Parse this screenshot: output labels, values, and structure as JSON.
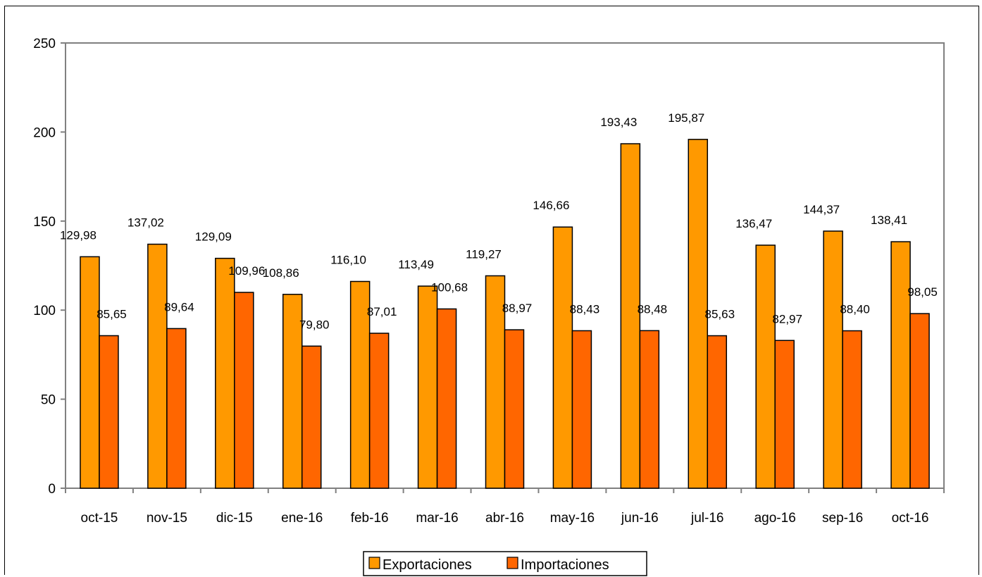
{
  "chart_data": {
    "type": "bar",
    "title": "",
    "xlabel": "",
    "ylabel": "",
    "ylim": [
      0,
      250
    ],
    "yticks": [
      "0",
      "50",
      "100",
      "150",
      "200",
      "250"
    ],
    "grid": false,
    "legend_position": "bottom",
    "categories": [
      "oct-15",
      "nov-15",
      "dic-15",
      "ene-16",
      "feb-16",
      "mar-16",
      "abr-16",
      "may-16",
      "jun-16",
      "jul-16",
      "ago-16",
      "sep-16",
      "oct-16"
    ],
    "series": [
      {
        "name": "Exportaciones",
        "color": "#FF9900",
        "values": [
          129.98,
          137.02,
          129.09,
          108.86,
          116.1,
          113.49,
          119.27,
          146.66,
          193.43,
          195.87,
          136.47,
          144.37,
          138.41
        ],
        "labels": [
          "129,98",
          "137,02",
          "129,09",
          "108,86",
          "116,10",
          "113,49",
          "119,27",
          "146,66",
          "193,43",
          "195,87",
          "136,47",
          "144,37",
          "138,41"
        ]
      },
      {
        "name": "Importaciones",
        "color": "#FF6600",
        "values": [
          85.65,
          89.64,
          109.96,
          79.8,
          87.01,
          100.68,
          88.97,
          88.43,
          88.48,
          85.63,
          82.97,
          88.4,
          98.05
        ],
        "labels": [
          "85,65",
          "89,64",
          "109,96",
          "79,80",
          "87,01",
          "100,68",
          "88,97",
          "88,43",
          "88,48",
          "85,63",
          "82,97",
          "88,40",
          "98,05"
        ]
      }
    ]
  }
}
